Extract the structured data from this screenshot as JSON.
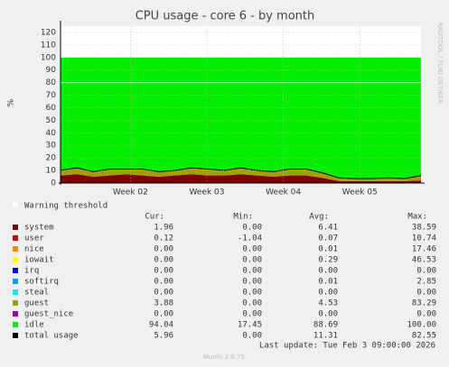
{
  "chart_data": {
    "type": "area",
    "title": "CPU usage - core 6 - by month",
    "y_label": "%",
    "side_label": "RRDTOOL / TOBI OETIKER",
    "x": [
      0,
      1.5,
      3,
      4.5,
      6,
      7.5,
      9,
      10.5,
      12,
      13.5,
      15,
      16.5,
      18,
      19.5,
      21,
      22.5,
      24,
      25.5,
      27,
      28.5,
      30,
      31.5,
      33
    ],
    "xlim": [
      0,
      33
    ],
    "xticks": [
      {
        "value": 6.4,
        "label": "Week 02"
      },
      {
        "value": 13.4,
        "label": "Week 03"
      },
      {
        "value": 20.4,
        "label": "Week 04"
      },
      {
        "value": 27.4,
        "label": "Week 05"
      }
    ],
    "ylim": [
      0,
      125
    ],
    "yticks": [
      0,
      10,
      20,
      30,
      40,
      50,
      60,
      70,
      80,
      90,
      100,
      110,
      120
    ],
    "grid": true,
    "warning": {
      "label": "Warning threshold",
      "value": 80,
      "color": "#ffffff"
    },
    "stats_header": [
      "Cur:",
      "Min:",
      "Avg:",
      "Max:"
    ],
    "series": [
      {
        "name": "system",
        "color": "#7e0000",
        "stack": true,
        "values": [
          6,
          7,
          5,
          6,
          7,
          6,
          5,
          6,
          7,
          6,
          6,
          7,
          6,
          5,
          6,
          6,
          4,
          1.5,
          1.5,
          1.5,
          1.5,
          1.5,
          1.96
        ],
        "stats": [
          "1.96",
          "0.00",
          "6.41",
          "38.59"
        ]
      },
      {
        "name": "user",
        "color": "#cc0000",
        "stack": true,
        "values": [
          0.1,
          0.1,
          0.1,
          0.1,
          0.1,
          0.1,
          0.1,
          0.1,
          0.1,
          0.1,
          0.1,
          0.1,
          0.1,
          0.1,
          0.1,
          0.1,
          0.1,
          0.1,
          0.1,
          0.1,
          0.1,
          0.1,
          0.12
        ],
        "stats": [
          "0.12",
          "-1.04",
          "0.07",
          "10.74"
        ]
      },
      {
        "name": "nice",
        "color": "#ff8800",
        "stack": true,
        "values": [
          0,
          0,
          0,
          0,
          0,
          0,
          0,
          0,
          0,
          0,
          0,
          0,
          0,
          0,
          0,
          0,
          0,
          0,
          0,
          0,
          0,
          0,
          0
        ],
        "stats": [
          "0.00",
          "0.00",
          "0.01",
          "17.46"
        ]
      },
      {
        "name": "iowait",
        "color": "#ffff00",
        "stack": true,
        "values": [
          0,
          0,
          0,
          0,
          0,
          0,
          0,
          0,
          0,
          0,
          0,
          0,
          0,
          0,
          0,
          0,
          0,
          0,
          0,
          0,
          0,
          0,
          0
        ],
        "stats": [
          "0.00",
          "0.00",
          "0.29",
          "46.53"
        ]
      },
      {
        "name": "irq",
        "color": "#0000ff",
        "stack": true,
        "values": [
          0,
          0,
          0,
          0,
          0,
          0,
          0,
          0,
          0,
          0,
          0,
          0,
          0,
          0,
          0,
          0,
          0,
          0,
          0,
          0,
          0,
          0,
          0
        ],
        "stats": [
          "0.00",
          "0.00",
          "0.00",
          "0.00"
        ]
      },
      {
        "name": "softirq",
        "color": "#00a0ff",
        "stack": true,
        "values": [
          0,
          0,
          0,
          0,
          0,
          0,
          0,
          0,
          0,
          0,
          0,
          0,
          0,
          0,
          0,
          0,
          0,
          0,
          0,
          0,
          0,
          0,
          0
        ],
        "stats": [
          "0.00",
          "0.00",
          "0.01",
          "2.85"
        ]
      },
      {
        "name": "steal",
        "color": "#00eeff",
        "stack": true,
        "values": [
          0,
          0,
          0,
          0,
          0,
          0,
          0,
          0,
          0,
          0,
          0,
          0,
          0,
          0,
          0,
          0,
          0,
          0,
          0,
          0,
          0,
          0,
          0
        ],
        "stats": [
          "0.00",
          "0.00",
          "0.00",
          "0.00"
        ]
      },
      {
        "name": "guest",
        "color": "#a0a000",
        "stack": true,
        "values": [
          4,
          5,
          4,
          5,
          4,
          5,
          4,
          4,
          5,
          5,
          4,
          5,
          4,
          4,
          5,
          5,
          4,
          2.5,
          2,
          2,
          2.5,
          2,
          3.88
        ],
        "stats": [
          "3.88",
          "0.00",
          "4.53",
          "83.29"
        ]
      },
      {
        "name": "guest_nice",
        "color": "#9900aa",
        "stack": true,
        "values": [
          0,
          0,
          0,
          0,
          0,
          0,
          0,
          0,
          0,
          0,
          0,
          0,
          0,
          0,
          0,
          0,
          0,
          0,
          0,
          0,
          0,
          0,
          0
        ],
        "stats": [
          "0.00",
          "0.00",
          "0.00",
          "0.00"
        ]
      },
      {
        "name": "idle",
        "color": "#00ee00",
        "stack": true,
        "values": [
          89.9,
          87.9,
          90.9,
          88.9,
          88.9,
          88.9,
          90.9,
          89.9,
          87.9,
          88.9,
          89.9,
          87.9,
          89.9,
          90.9,
          88.9,
          88.9,
          91.9,
          95.9,
          96.4,
          96.4,
          95.9,
          96.4,
          94.04
        ],
        "stats": [
          "94.04",
          "17.45",
          "88.69",
          "100.00"
        ]
      },
      {
        "name": "total usage",
        "color": "#000000",
        "stack": false,
        "values": [
          10.1,
          12.1,
          9.1,
          11.1,
          11.1,
          11.1,
          9.1,
          10.1,
          12.1,
          11.1,
          10.1,
          12.1,
          10.1,
          9.1,
          11.1,
          11.1,
          8.1,
          4.1,
          3.6,
          3.6,
          4.1,
          3.6,
          5.96
        ],
        "stats": [
          "5.96",
          "0.00",
          "11.31",
          "82.55"
        ]
      }
    ],
    "last_update": "Last update: Tue Feb  3 09:00:00 2026",
    "footer": "Munin 2.0.75"
  }
}
